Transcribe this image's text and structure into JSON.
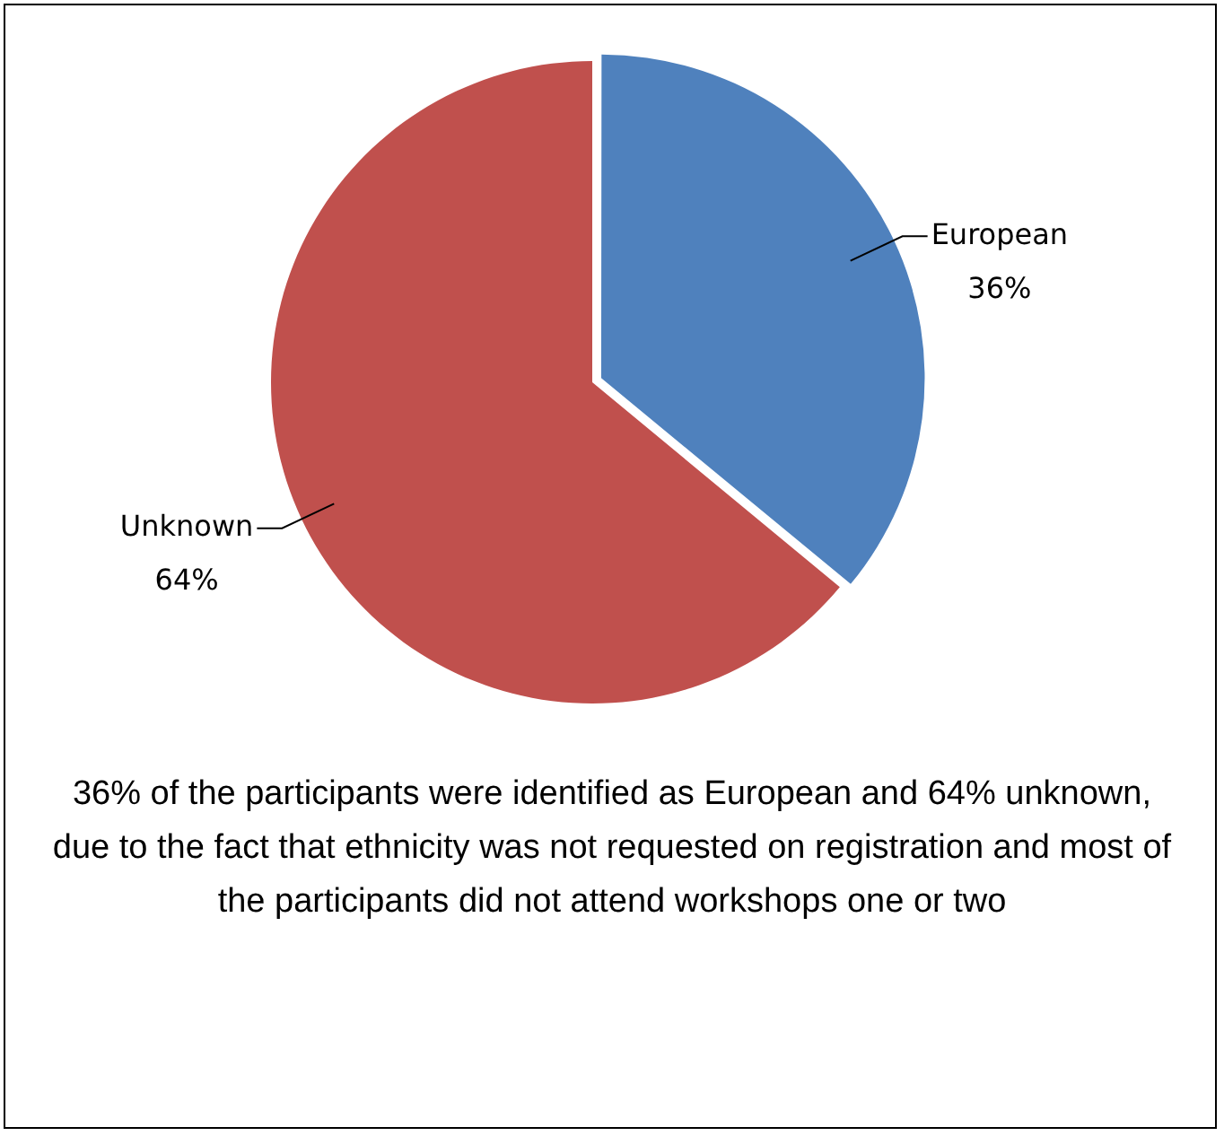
{
  "chart_data": {
    "type": "pie",
    "categories": [
      "European",
      "Unknown"
    ],
    "values": [
      36,
      64
    ],
    "value_labels": [
      "36%",
      "64%"
    ],
    "colors": [
      "#4f81bd",
      "#c0504d"
    ],
    "annotations": [
      "36% of the participants were identified as European and 64% unknown, due to the fact that ethnicity was not requested on registration and most of the participants did not attend workshops one or two"
    ]
  }
}
